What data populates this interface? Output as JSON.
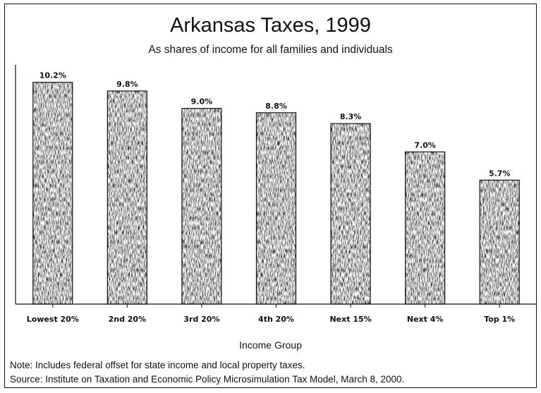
{
  "chart_data": {
    "type": "bar",
    "title": "Arkansas Taxes, 1999",
    "subtitle": "As shares of income for all families and individuals",
    "xlabel": "Income Group",
    "categories": [
      "Lowest 20%",
      "2nd 20%",
      "3rd 20%",
      "4th 20%",
      "Next 15%",
      "Next 4%",
      "Top 1%"
    ],
    "values": [
      10.2,
      9.8,
      9.0,
      8.8,
      8.3,
      7.0,
      5.7
    ],
    "value_labels": [
      "10.2%",
      "9.8%",
      "9.0%",
      "8.8%",
      "8.3%",
      "7.0%",
      "5.7%"
    ],
    "ylim": [
      0,
      11
    ],
    "grid": false,
    "bar_color": "#2a2a2a"
  },
  "notes": {
    "note": "Note: Includes federal offset for state income and local property taxes.",
    "source": "Source: Institute on Taxation and Economic Policy Microsimulation Tax Model, March 8, 2000."
  }
}
